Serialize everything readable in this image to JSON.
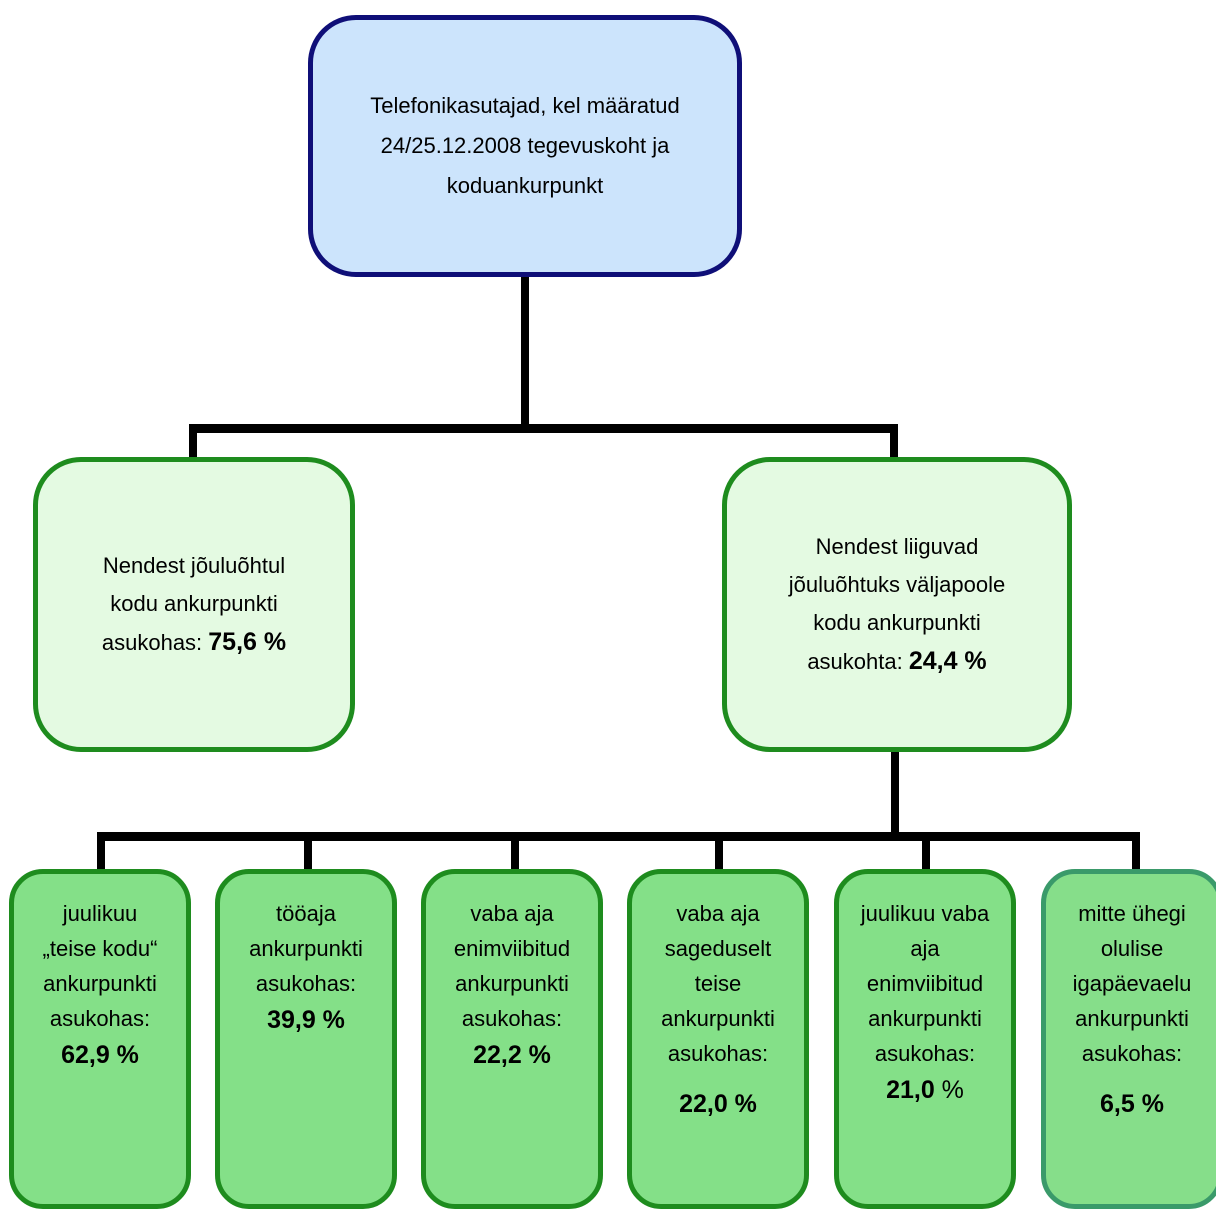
{
  "diagram": {
    "root": {
      "lines": [
        "Telefonikasutajad, kel  määratud",
        "24/25.12.2008 tegevuskoht ja",
        "koduankurpunkt"
      ]
    },
    "level1": [
      {
        "lines": [
          "Nendest jõuluõhtul",
          "kodu ankurpunkti"
        ],
        "value_prefix": "asukohas: ",
        "value": "75,6 %"
      },
      {
        "lines": [
          "Nendest liiguvad",
          "jõuluõhtuks väljapoole",
          "kodu ankurpunkti"
        ],
        "value_prefix": "asukohta: ",
        "value": "24,4 %"
      }
    ],
    "level2": [
      {
        "lines": [
          "juulikuu",
          "„teise kodu“",
          "ankurpunkti",
          "asukohas:"
        ],
        "value": "62,9 %"
      },
      {
        "lines": [
          "tööaja",
          "ankurpunkti",
          "asukohas:"
        ],
        "value": "39,9 %"
      },
      {
        "lines": [
          "vaba aja",
          "enimviibitud",
          "ankurpunkti",
          "asukohas:"
        ],
        "value": "22,2 %"
      },
      {
        "lines": [
          "vaba aja",
          "sageduselt",
          "teise",
          "ankurpunkti",
          "asukohas:"
        ],
        "value": "22,0 %"
      },
      {
        "lines": [
          "juulikuu vaba",
          "aja",
          "enimviibitud",
          "ankurpunkti",
          "asukohas:"
        ],
        "value_number": "21,0",
        "value_unit": " %"
      },
      {
        "lines": [
          "mitte ühegi",
          "olulise",
          "igapäevaelu",
          "ankurpunkti",
          "asukohas:"
        ],
        "value": "6,5 %"
      }
    ]
  },
  "colors": {
    "root_fill": "#cce4fc",
    "root_border": "#0f0f78",
    "level1_fill": "#e4fae2",
    "level1_border": "#1e8c1e",
    "level2_fill": "#84e088",
    "level2_border": "#1e8c1e",
    "connector": "#000000"
  }
}
